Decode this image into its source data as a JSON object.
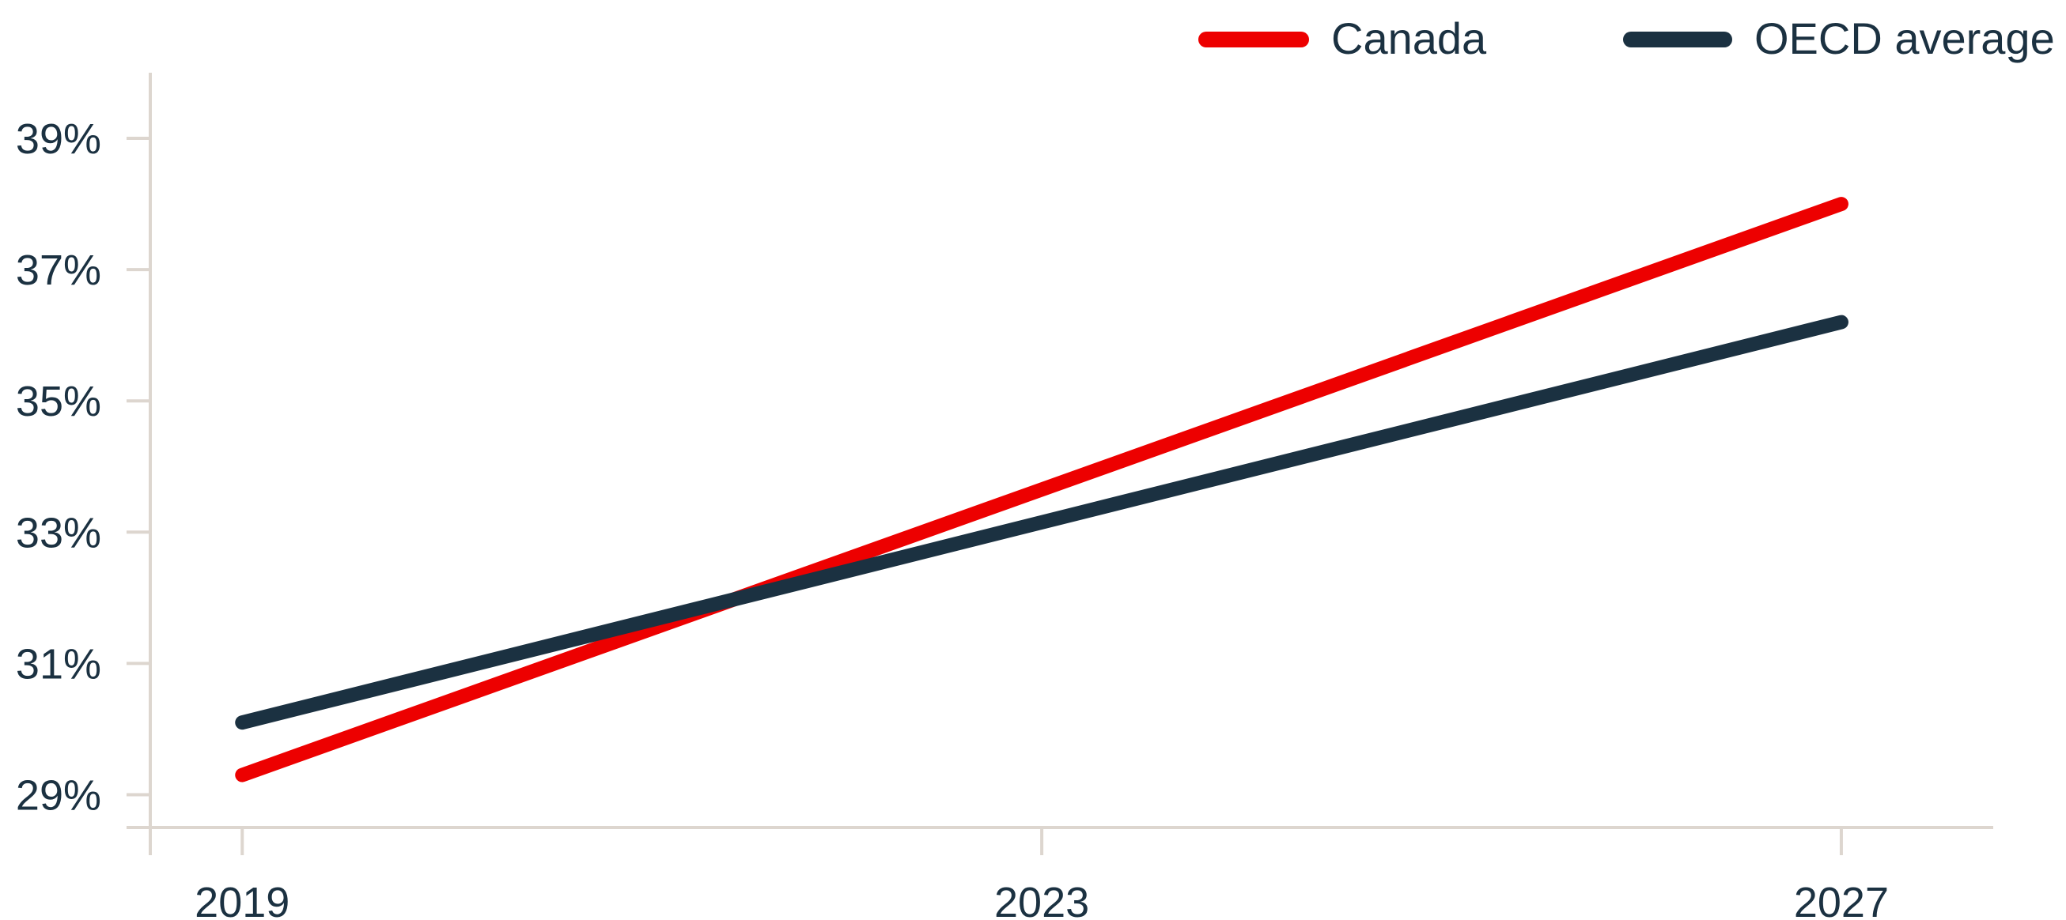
{
  "chart_data": {
    "type": "line",
    "title": "",
    "xlabel": "",
    "ylabel": "",
    "x": [
      2019,
      2027
    ],
    "x_ticks": [
      "2019",
      "2023",
      "2027"
    ],
    "x_tick_values": [
      2019,
      2023,
      2027
    ],
    "xlim": [
      2018.54,
      2027.76
    ],
    "y_ticks": [
      "29%",
      "31%",
      "33%",
      "35%",
      "37%",
      "39%"
    ],
    "y_tick_values": [
      29,
      31,
      33,
      35,
      37,
      39
    ],
    "ylim": [
      28.5,
      40.0
    ],
    "y_unit": "%",
    "grid": false,
    "legend_position": "top-right",
    "series": [
      {
        "name": "Canada",
        "color": "#ed0000",
        "values": [
          29.3,
          38.0
        ]
      },
      {
        "name": "OECD average",
        "color": "#1b3141",
        "values": [
          30.1,
          36.2
        ]
      }
    ],
    "axis_color": "#ddd6cf",
    "text_color": "#1b3141"
  }
}
